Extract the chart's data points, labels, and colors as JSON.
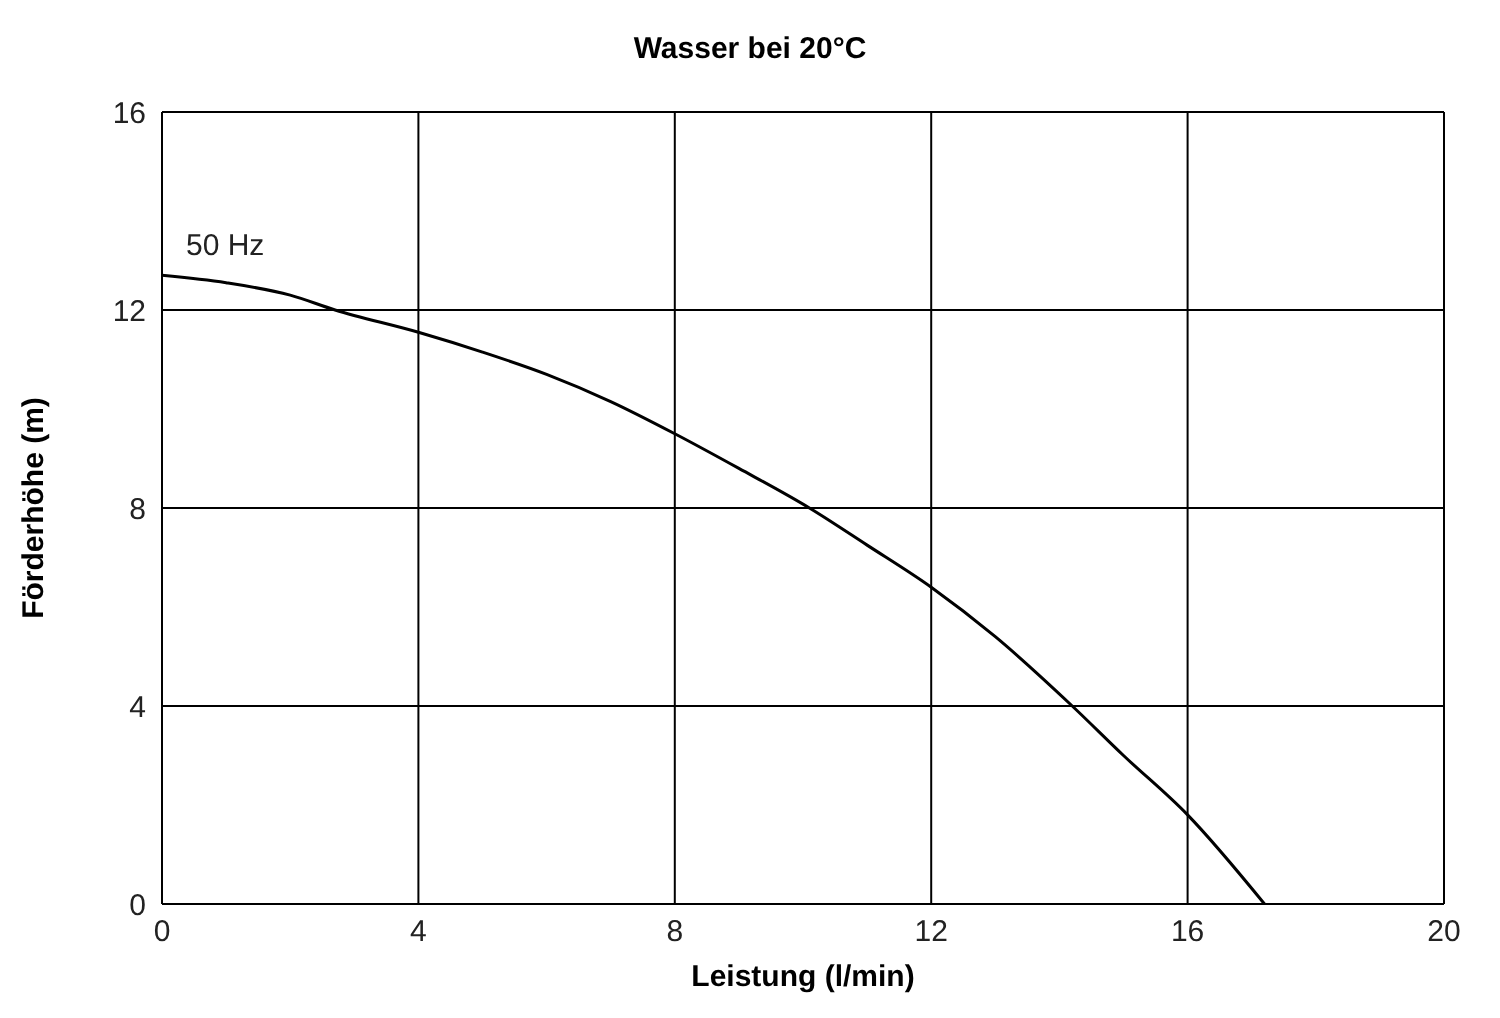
{
  "chart_data": {
    "type": "line",
    "title": "Wasser bei 20°C",
    "xlabel": "Leistung (l/min)",
    "ylabel": "Förderhöhe (m)",
    "series": [
      {
        "name": "50 Hz",
        "color": "#000000",
        "x": [
          0,
          1,
          2,
          2.7,
          4,
          5,
          6,
          7,
          8,
          9,
          10.1,
          11,
          12,
          13,
          14.2,
          15,
          16,
          17.2
        ],
        "values": [
          12.7,
          12.55,
          12.3,
          12,
          11.55,
          11.15,
          10.7,
          10.15,
          9.5,
          8.8,
          8,
          7.25,
          6.4,
          5.4,
          4,
          3,
          1.8,
          0
        ]
      }
    ],
    "xlim": [
      0,
      20
    ],
    "xticks": [
      0,
      4,
      8,
      12,
      16,
      20
    ],
    "ylim": [
      0,
      16
    ],
    "yticks": [
      0,
      4,
      8,
      12,
      16
    ],
    "grid": true,
    "legend": false,
    "marker": "none",
    "line_style": "solid"
  }
}
